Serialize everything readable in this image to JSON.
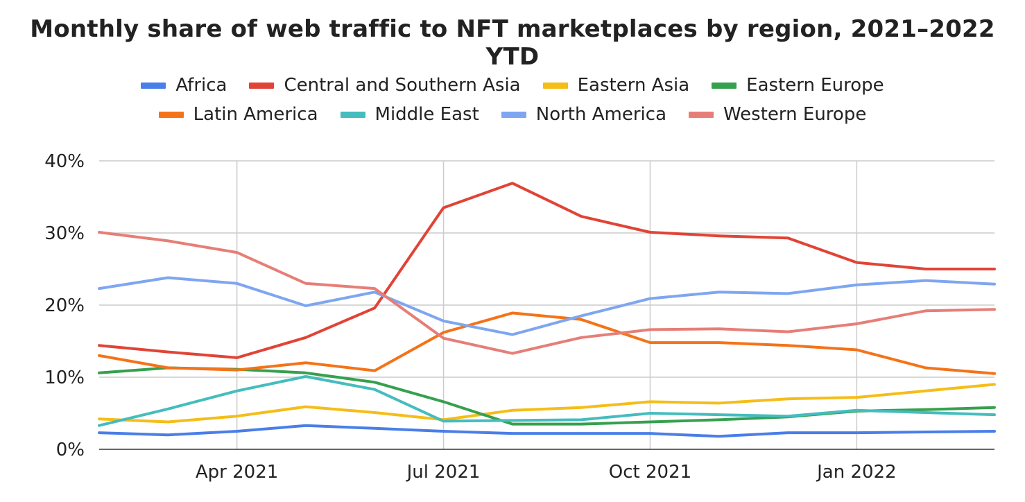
{
  "chart_data": {
    "type": "line",
    "title": "Monthly share of web traffic to NFT marketplaces by region, 2021–2022 YTD",
    "xlabel": "",
    "ylabel": "",
    "ylim": [
      0,
      40
    ],
    "y_ticks": [
      0,
      10,
      20,
      30,
      40
    ],
    "y_tick_labels": [
      "0%",
      "10%",
      "20%",
      "30%",
      "40%"
    ],
    "x_tick_labels": [
      "Apr 2021",
      "Jul 2021",
      "Oct 2021",
      "Jan 2022"
    ],
    "x_tick_indices": [
      2,
      5,
      8,
      11
    ],
    "categories": [
      "Feb 2021",
      "Mar 2021",
      "Apr 2021",
      "May 2021",
      "Jun 2021",
      "Jul 2021",
      "Aug 2021",
      "Sep 2021",
      "Oct 2021",
      "Nov 2021",
      "Dec 2021",
      "Jan 2022",
      "Feb 2022",
      "Mar 2022"
    ],
    "grid": true,
    "legend_position": "top",
    "series": [
      {
        "name": "Africa",
        "color": "#4a7ee8",
        "values": [
          2.3,
          2.0,
          2.5,
          3.3,
          2.9,
          2.5,
          2.2,
          2.2,
          2.2,
          1.8,
          2.3,
          2.3,
          2.4,
          2.5
        ]
      },
      {
        "name": "Central and Southern Asia",
        "color": "#e04436",
        "values": [
          14.4,
          13.5,
          12.7,
          15.5,
          19.6,
          33.5,
          36.9,
          32.3,
          30.1,
          29.6,
          29.3,
          25.9,
          25.0,
          25.0
        ]
      },
      {
        "name": "Eastern Asia",
        "color": "#f5bd17",
        "values": [
          4.2,
          3.8,
          4.6,
          5.9,
          5.1,
          4.1,
          5.4,
          5.8,
          6.6,
          6.4,
          7.0,
          7.2,
          8.1,
          9.0
        ]
      },
      {
        "name": "Eastern Europe",
        "color": "#36a04e",
        "values": [
          10.6,
          11.3,
          11.1,
          10.6,
          9.3,
          6.6,
          3.5,
          3.5,
          3.8,
          4.1,
          4.5,
          5.3,
          5.5,
          5.8
        ]
      },
      {
        "name": "Latin America",
        "color": "#f47318",
        "values": [
          13.0,
          11.3,
          11.0,
          12.0,
          10.9,
          16.2,
          18.9,
          18.0,
          14.8,
          14.8,
          14.4,
          13.8,
          11.3,
          10.5
        ]
      },
      {
        "name": "Middle East",
        "color": "#45bcbe",
        "values": [
          3.3,
          5.6,
          8.1,
          10.1,
          8.3,
          3.9,
          4.0,
          4.1,
          5.0,
          4.8,
          4.6,
          5.4,
          5.1,
          4.8
        ]
      },
      {
        "name": "North America",
        "color": "#7ea6f0",
        "values": [
          22.3,
          23.8,
          23.0,
          19.9,
          21.8,
          17.8,
          15.9,
          18.5,
          20.9,
          21.8,
          21.6,
          22.8,
          23.4,
          22.9
        ]
      },
      {
        "name": "Western Europe",
        "color": "#e67e77",
        "values": [
          30.1,
          28.9,
          27.3,
          23.0,
          22.3,
          15.4,
          13.3,
          15.5,
          16.6,
          16.7,
          16.3,
          17.4,
          19.2,
          19.4
        ]
      }
    ]
  }
}
